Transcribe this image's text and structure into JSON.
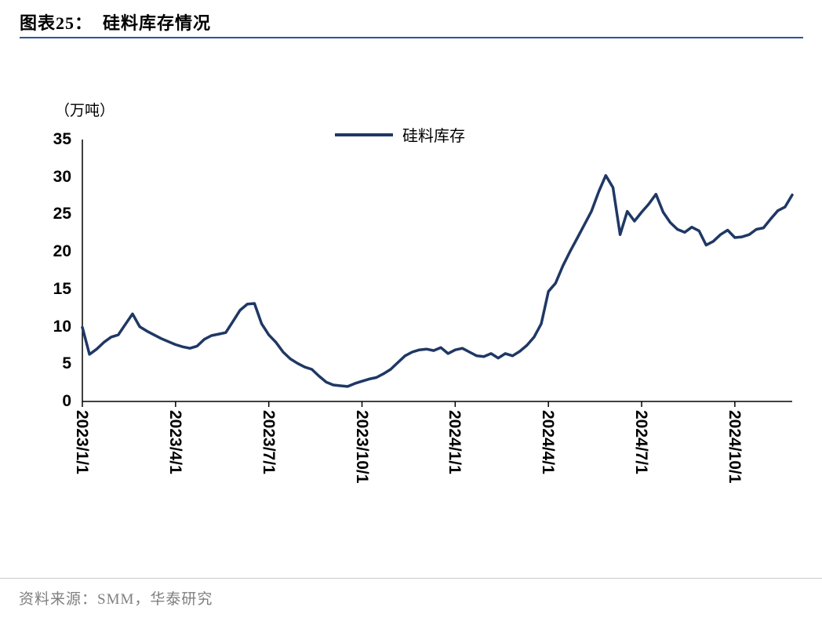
{
  "page": {
    "title": "图表25：  硅料库存情况",
    "source": "资料来源：SMM，华泰研究"
  },
  "colors": {
    "line": "#1f3864",
    "title_rule": "#2f5496",
    "axis": "#000000",
    "footer_rule": "#c9c9c9",
    "footer_text": "#7f7f7f"
  },
  "chart_data": {
    "type": "line",
    "title": "硅料库存情况",
    "unit_label": "（万吨）",
    "legend": [
      "硅料库存"
    ],
    "legend_position": "top-center",
    "grid": false,
    "ylim": [
      0,
      35
    ],
    "y_ticks": [
      0,
      5,
      10,
      15,
      20,
      25,
      30,
      35
    ],
    "x_tick_labels": [
      "2023/1/1",
      "2023/4/1",
      "2023/7/1",
      "2023/10/1",
      "2024/1/1",
      "2024/4/1",
      "2024/7/1",
      "2024/10/1"
    ],
    "x_tick_indices": [
      0,
      13,
      26,
      39,
      52,
      65,
      78,
      91
    ],
    "x_note": "weekly observations from 2023/1/1 to 2024/11, index = week number",
    "series": [
      {
        "name": "硅料库存",
        "color": "#1f3864",
        "values": [
          9.9,
          6.3,
          7.0,
          7.9,
          8.6,
          8.9,
          10.3,
          11.7,
          10.0,
          9.4,
          8.9,
          8.4,
          8.0,
          7.6,
          7.3,
          7.1,
          7.4,
          8.3,
          8.8,
          9.0,
          9.2,
          10.7,
          12.2,
          13.0,
          13.1,
          10.4,
          8.9,
          7.9,
          6.6,
          5.7,
          5.1,
          4.6,
          4.3,
          3.4,
          2.6,
          2.2,
          2.1,
          2.0,
          2.4,
          2.7,
          3.0,
          3.2,
          3.7,
          4.3,
          5.2,
          6.1,
          6.6,
          6.9,
          7.0,
          6.8,
          7.2,
          6.4,
          6.9,
          7.1,
          6.6,
          6.1,
          6.0,
          6.4,
          5.8,
          6.4,
          6.1,
          6.7,
          7.5,
          8.6,
          10.4,
          14.7,
          15.8,
          18.1,
          20.0,
          21.8,
          23.6,
          25.4,
          28.0,
          30.2,
          28.6,
          22.3,
          25.4,
          24.1,
          25.3,
          26.4,
          27.7,
          25.3,
          23.9,
          23.0,
          22.6,
          23.3,
          22.8,
          20.9,
          21.4,
          22.3,
          22.9,
          21.9,
          22.0,
          22.3,
          23.0,
          23.2,
          24.4,
          25.5,
          26.0,
          27.6
        ]
      }
    ]
  }
}
